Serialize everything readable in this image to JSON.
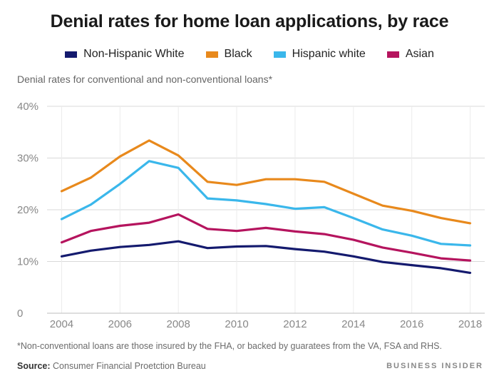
{
  "title": "Denial rates for home loan applications, by race",
  "subtitle": "Denial rates for conventional and non-conventional loans*",
  "footnote": "*Non-conventional loans are those insured by the FHA, or backed by guaratees from the VA, FSA and RHS.",
  "source_label": "Source:",
  "source_text": "Consumer Financial Proetction Bureau",
  "brand": "BUSINESS INSIDER",
  "chart_data": {
    "type": "line",
    "title": "Denial rates for home loan applications, by race",
    "subtitle": "Denial rates for conventional and non-conventional loans*",
    "xlabel": "",
    "ylabel": "",
    "x": [
      2004,
      2005,
      2006,
      2007,
      2008,
      2009,
      2010,
      2011,
      2012,
      2013,
      2014,
      2015,
      2016,
      2017,
      2018
    ],
    "x_ticks": [
      2004,
      2006,
      2008,
      2010,
      2012,
      2014,
      2016,
      2018
    ],
    "x_tick_labels": [
      "2004",
      "2006",
      "2008",
      "2010",
      "2012",
      "2014",
      "2016",
      "2018"
    ],
    "ylim": [
      0,
      40
    ],
    "y_ticks": [
      0,
      10,
      20,
      30,
      40
    ],
    "y_tick_labels": [
      "0",
      "10%",
      "20%",
      "30%",
      "40%"
    ],
    "grid": true,
    "legend_position": "top",
    "series": [
      {
        "name": "Non-Hispanic White",
        "color": "#141a6e",
        "values": [
          11.0,
          12.1,
          12.8,
          13.2,
          13.9,
          12.6,
          12.9,
          13.0,
          12.4,
          11.9,
          11.0,
          9.9,
          9.3,
          8.7,
          7.8
        ]
      },
      {
        "name": "Black",
        "color": "#e8891c",
        "values": [
          23.6,
          26.2,
          30.3,
          33.4,
          30.5,
          25.4,
          24.8,
          25.9,
          25.9,
          25.4,
          23.1,
          20.8,
          19.8,
          18.4,
          17.4
        ]
      },
      {
        "name": "Hispanic white",
        "color": "#3ab7eb",
        "values": [
          18.2,
          21.0,
          25.0,
          29.4,
          28.1,
          22.2,
          21.8,
          21.1,
          20.2,
          20.5,
          18.4,
          16.2,
          15.0,
          13.4,
          13.1
        ]
      },
      {
        "name": "Asian",
        "color": "#b5145e",
        "values": [
          13.7,
          15.9,
          16.9,
          17.5,
          19.1,
          16.3,
          15.9,
          16.5,
          15.8,
          15.3,
          14.2,
          12.7,
          11.7,
          10.6,
          10.2
        ]
      }
    ]
  }
}
